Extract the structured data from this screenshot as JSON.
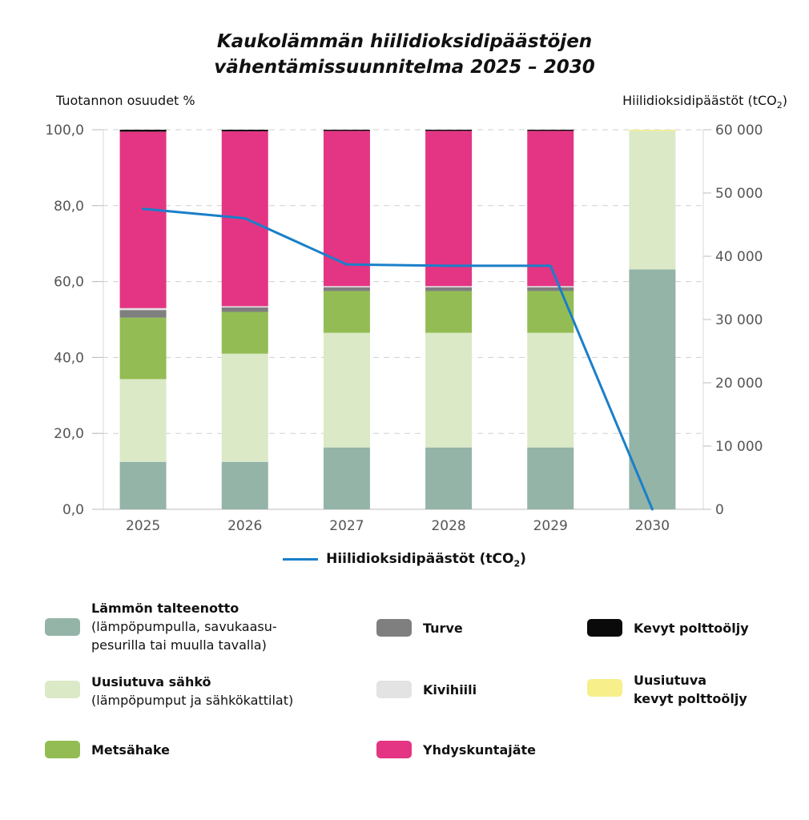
{
  "chart_data": {
    "type": "bar",
    "stacked": true,
    "title_lines": [
      "Kaukolämmän hiilidioksidipäästöjen",
      "vähentämissuunnitelma 2025 – 2030"
    ],
    "ylabel_left": "Tuotannon osuudet %",
    "ylabel_right_main": "Hiilidioksidipäästöt (tCO",
    "ylabel_right_sub": "2",
    "ylabel_right_close": ")",
    "categories": [
      "2025",
      "2026",
      "2027",
      "2028",
      "2029",
      "2030"
    ],
    "ylim_left": [
      0,
      100
    ],
    "left_ticks": [
      "0,0",
      "20,0",
      "40,0",
      "60,0",
      "80,0",
      "100,0"
    ],
    "left_tick_values": [
      0,
      20,
      40,
      60,
      80,
      100
    ],
    "ylim_right": [
      0,
      60000
    ],
    "right_ticks": [
      "0",
      "10 000",
      "20 000",
      "30 000",
      "40 000",
      "50 000",
      "60 000"
    ],
    "right_tick_values": [
      0,
      10000,
      20000,
      30000,
      40000,
      50000,
      60000
    ],
    "grid": true,
    "series": [
      {
        "name": "Lämmön talteenotto",
        "color": "#94b4a8",
        "values": [
          12.5,
          12.5,
          16.3,
          16.3,
          16.3,
          63.2
        ]
      },
      {
        "name": "Uusiutuva sähkö",
        "color": "#dbe9c6",
        "values": [
          21.8,
          28.5,
          30.2,
          30.2,
          30.2,
          36.5
        ]
      },
      {
        "name": "Metsähake",
        "color": "#93bd54",
        "values": [
          16.2,
          11.0,
          11.0,
          11.0,
          11.0,
          0
        ]
      },
      {
        "name": "Turve",
        "color": "#7f7f7f",
        "values": [
          2.0,
          1.2,
          1.0,
          1.0,
          1.0,
          0
        ]
      },
      {
        "name": "Kivihiili",
        "color": "#e3e3e3",
        "values": [
          0.5,
          0.3,
          0.3,
          0.3,
          0.3,
          0
        ]
      },
      {
        "name": "Yhdyskuntajäte",
        "color": "#e33583",
        "values": [
          46.5,
          46.1,
          40.9,
          40.9,
          40.9,
          0
        ]
      },
      {
        "name": "Kevyt polttoöljy",
        "color": "#0a0a0a",
        "values": [
          0.5,
          0.4,
          0.3,
          0.3,
          0.3,
          0
        ]
      },
      {
        "name": "Uusiutuva kevyt polttoöljy",
        "color": "#f6ef8a",
        "values": [
          0,
          0,
          0,
          0,
          0,
          0.3
        ]
      }
    ],
    "line_series": {
      "name_main": "Hiilidioksidipäästöt (tCO",
      "name_sub": "2",
      "name_close": ")",
      "color": "#1a7fc9",
      "axis": "right",
      "values": [
        47500,
        46000,
        38700,
        38500,
        38500,
        0
      ]
    }
  },
  "legend": {
    "items": [
      {
        "name": "Lämmön talteenotto",
        "sub1": "(lämpöpumpulla, savukaasu-",
        "sub2": "pesurilla tai muulla tavalla)",
        "color": "#94b4a8"
      },
      {
        "name": "Uusiutuva sähkö",
        "sub1": "(lämpöpumput ja sähkökattilat)",
        "color": "#dbe9c6"
      },
      {
        "name": "Metsähake",
        "color": "#93bd54"
      },
      {
        "name": "Turve",
        "color": "#7f7f7f"
      },
      {
        "name": "Kivihiili",
        "color": "#e3e3e3"
      },
      {
        "name": "Yhdyskuntajäte",
        "color": "#e33583"
      },
      {
        "name": "Kevyt polttoöljy",
        "color": "#0a0a0a"
      },
      {
        "name": "Uusiutuva",
        "name2": "kevyt polttoöljy",
        "color": "#f6ef8a"
      }
    ]
  }
}
